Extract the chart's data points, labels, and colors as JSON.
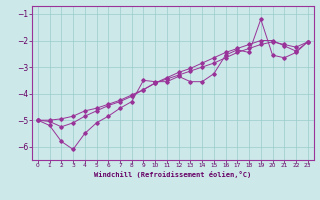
{
  "xlabel": "Windchill (Refroidissement éolien,°C)",
  "xlim": [
    -0.5,
    23.5
  ],
  "ylim": [
    -6.5,
    -0.7
  ],
  "yticks": [
    -6,
    -5,
    -4,
    -3,
    -2,
    -1
  ],
  "xticks": [
    0,
    1,
    2,
    3,
    4,
    5,
    6,
    7,
    8,
    9,
    10,
    11,
    12,
    13,
    14,
    15,
    16,
    17,
    18,
    19,
    20,
    21,
    22,
    23
  ],
  "bg_color": "#cce8e8",
  "grid_color": "#99cccc",
  "line_color": "#993399",
  "line1_x": [
    0,
    1,
    2,
    3,
    4,
    5,
    6,
    7,
    8,
    9,
    10,
    11,
    12,
    13,
    14,
    15,
    16,
    17,
    18,
    19,
    20,
    21,
    22,
    23
  ],
  "line1_y": [
    -5.0,
    -5.2,
    -5.8,
    -6.1,
    -5.5,
    -5.1,
    -4.85,
    -4.55,
    -4.3,
    -3.5,
    -3.55,
    -3.55,
    -3.35,
    -3.55,
    -3.55,
    -3.25,
    -2.55,
    -2.35,
    -2.45,
    -1.2,
    -2.55,
    -2.65,
    -2.45,
    -2.05
  ],
  "line2_x": [
    0,
    1,
    2,
    3,
    4,
    5,
    6,
    7,
    8,
    9,
    10,
    11,
    12,
    13,
    14,
    15,
    16,
    17,
    18,
    19,
    20,
    21,
    22,
    23
  ],
  "line2_y": [
    -5.0,
    -5.0,
    -4.95,
    -4.85,
    -4.65,
    -4.55,
    -4.4,
    -4.25,
    -4.05,
    -3.85,
    -3.6,
    -3.45,
    -3.3,
    -3.15,
    -3.0,
    -2.85,
    -2.65,
    -2.45,
    -2.3,
    -2.15,
    -2.05,
    -2.15,
    -2.25,
    -2.05
  ],
  "line3_x": [
    0,
    1,
    2,
    3,
    4,
    5,
    6,
    7,
    8,
    9,
    10,
    11,
    12,
    13,
    14,
    15,
    16,
    17,
    18,
    19,
    20,
    21,
    22,
    23
  ],
  "line3_y": [
    -5.0,
    -5.05,
    -5.25,
    -5.1,
    -4.85,
    -4.65,
    -4.45,
    -4.3,
    -4.1,
    -3.85,
    -3.6,
    -3.4,
    -3.2,
    -3.05,
    -2.85,
    -2.65,
    -2.45,
    -2.3,
    -2.15,
    -2.0,
    -2.0,
    -2.2,
    -2.4,
    -2.05
  ]
}
